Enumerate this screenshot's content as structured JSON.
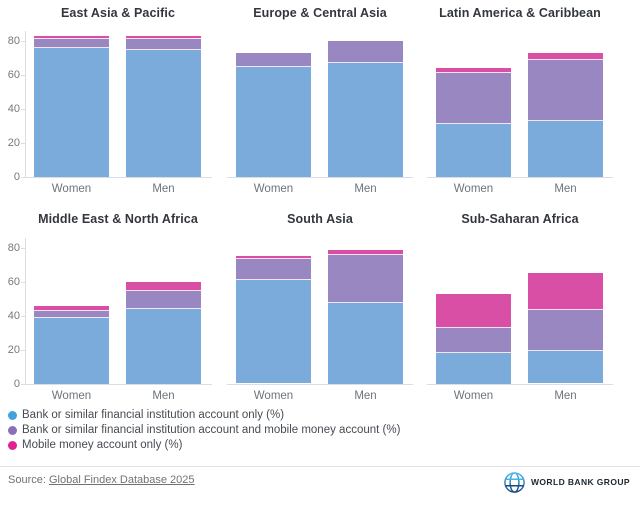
{
  "chart_data": {
    "type": "bar",
    "stacked": true,
    "categories": [
      "Women",
      "Men"
    ],
    "yticks": [
      0,
      20,
      40,
      60,
      80
    ],
    "ylim": [
      0,
      85
    ],
    "grid": false,
    "legend_position": "bottom-left",
    "series_names": [
      "Bank or similar financial institution account only (%)",
      "Bank or similar financial institution account and mobile money account (%)",
      "Mobile money account only (%)"
    ],
    "panels": [
      {
        "title": "East Asia & Pacific",
        "series": [
          {
            "name": "Women",
            "values": [
              76,
              5,
              2
            ]
          },
          {
            "name": "Men",
            "values": [
              75,
              6,
              2
            ]
          }
        ]
      },
      {
        "title": "Europe & Central Asia",
        "series": [
          {
            "name": "Women",
            "values": [
              65,
              8,
              0
            ]
          },
          {
            "name": "Men",
            "values": [
              67,
              13,
              0
            ]
          }
        ]
      },
      {
        "title": "Latin America & Caribbean",
        "series": [
          {
            "name": "Women",
            "values": [
              31,
              30,
              3
            ]
          },
          {
            "name": "Men",
            "values": [
              33,
              36,
              4
            ]
          }
        ]
      },
      {
        "title": "Middle East & North Africa",
        "series": [
          {
            "name": "Women",
            "values": [
              39,
              4,
              3
            ]
          },
          {
            "name": "Men",
            "values": [
              44,
              11,
              5
            ]
          }
        ]
      },
      {
        "title": "South Asia",
        "series": [
          {
            "name": "Women",
            "values": [
              61,
              12,
              2
            ]
          },
          {
            "name": "Men",
            "values": [
              48,
              28,
              3
            ]
          }
        ]
      },
      {
        "title": "Sub-Saharan Africa",
        "series": [
          {
            "name": "Women",
            "values": [
              18,
              15,
              20
            ]
          },
          {
            "name": "Men",
            "values": [
              19,
              24,
              22
            ]
          }
        ]
      }
    ]
  },
  "colors": {
    "bar_blue": "#7aabdb",
    "bar_purple": "#9887c0",
    "bar_pink": "#d94fa5",
    "legend_blue": "#42a3dc",
    "legend_purple": "#8a6fb8",
    "legend_pink": "#e0218f"
  },
  "legend": {
    "items": [
      {
        "label": "Bank or similar financial institution account only (%)"
      },
      {
        "label": "Bank or similar financial institution account and mobile money account (%)"
      },
      {
        "label": "Mobile money account only (%)"
      }
    ]
  },
  "footer": {
    "source_prefix": "Source: ",
    "source_link": "Global Findex Database 2025",
    "logo_text": "WORLD BANK GROUP"
  }
}
